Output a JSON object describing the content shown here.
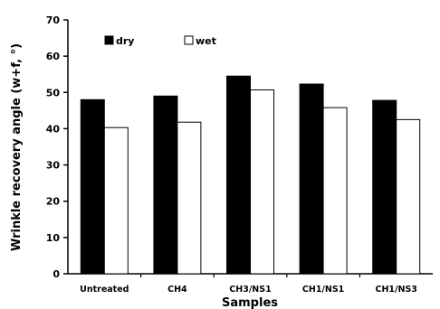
{
  "chart_data": {
    "type": "bar",
    "categories": [
      "Untreated",
      "CH4",
      "CH3/NS1",
      "CH1/NS1",
      "CH1/NS3"
    ],
    "series": [
      {
        "name": "dry",
        "values": [
          48,
          49,
          54.5,
          52.3,
          47.8
        ],
        "color": "#000000"
      },
      {
        "name": "wet",
        "values": [
          40.3,
          41.8,
          50.7,
          45.8,
          42.5
        ],
        "color": "#ffffff"
      }
    ],
    "xlabel": "Samples",
    "ylabel": "Wrinkle recovery angle (w+f, °)",
    "ylim": [
      0,
      70
    ],
    "yticks": [
      0,
      10,
      20,
      30,
      40,
      50,
      60,
      70
    ],
    "grid": false,
    "legend_position": "top-left"
  }
}
